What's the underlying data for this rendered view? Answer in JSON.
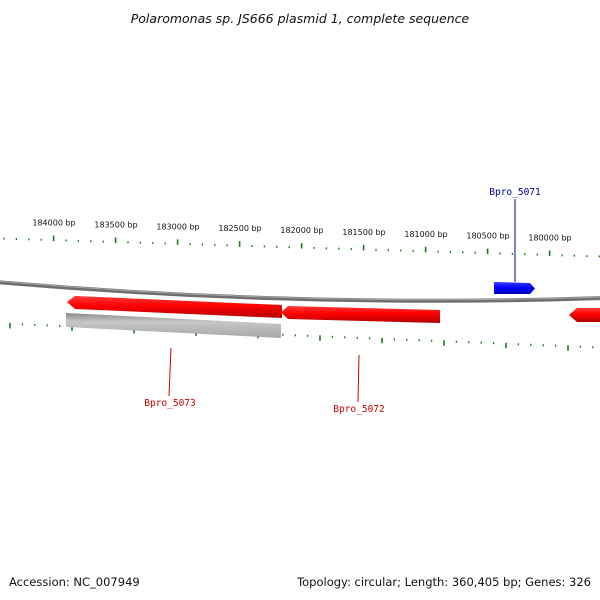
{
  "title": "Polaromonas sp. JS666 plasmid 1, complete sequence",
  "footer": {
    "accession": "Accession: NC_007949",
    "summary": "Topology: circular; Length: 360,405 bp; Genes: 326"
  },
  "colors": {
    "tick": "#1a7a1a",
    "backbone": "#808080",
    "gene_red": "#ff0000",
    "gene_blue": "#0000ff",
    "gene_gray": "#b8b8b8",
    "label_red": "#cc0000",
    "label_blue": "#000099"
  },
  "scale_labels": [
    "184000 bp",
    "183500 bp",
    "183000 bp",
    "182500 bp",
    "182000 bp",
    "181500 bp",
    "181000 bp",
    "180500 bp",
    "180000 bp"
  ],
  "gene_labels": {
    "g5071": "Bpro_5071",
    "g5072": "Bpro_5072",
    "g5073": "Bpro_5073"
  }
}
